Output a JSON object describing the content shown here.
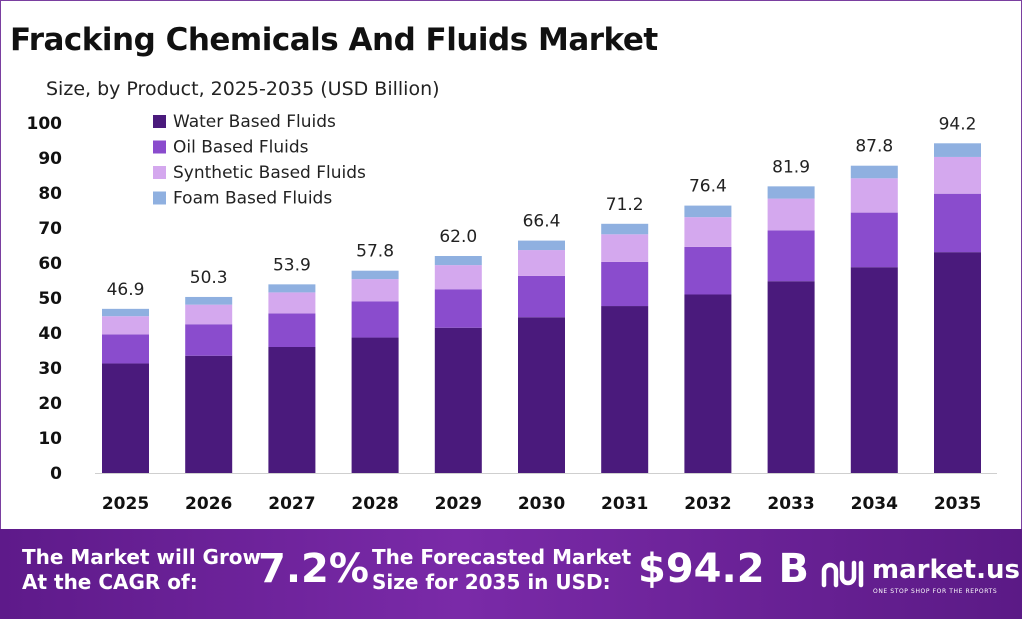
{
  "title": "Fracking Chemicals And Fluids Market",
  "subtitle": "Size, by Product, 2025-2035 (USD Billion)",
  "colors": {
    "water": "#4a1a7c",
    "oil": "#8a4ccd",
    "synthetic": "#d4a8ee",
    "foam": "#8fb0e0",
    "footer": "#6a2296"
  },
  "chart_data": {
    "type": "bar",
    "stacked": true,
    "categories": [
      "2025",
      "2026",
      "2027",
      "2028",
      "2029",
      "2030",
      "2031",
      "2032",
      "2033",
      "2034",
      "2035"
    ],
    "series": [
      {
        "name": "Water Based Fluids",
        "values": [
          31.3,
          33.5,
          36.0,
          38.7,
          41.5,
          44.5,
          47.7,
          51.0,
          54.8,
          58.8,
          63.1
        ]
      },
      {
        "name": "Oil Based Fluids",
        "values": [
          8.3,
          9.0,
          9.6,
          10.3,
          11.0,
          11.8,
          12.6,
          13.6,
          14.5,
          15.6,
          16.7
        ]
      },
      {
        "name": "Synthetic Based Fluids",
        "values": [
          5.2,
          5.6,
          6.0,
          6.4,
          6.9,
          7.4,
          7.9,
          8.5,
          9.1,
          9.8,
          10.5
        ]
      },
      {
        "name": "Foam Based Fluids",
        "values": [
          2.1,
          2.2,
          2.3,
          2.4,
          2.6,
          2.7,
          3.0,
          3.3,
          3.5,
          3.6,
          3.9
        ]
      }
    ],
    "totals": [
      "46.9",
      "50.3",
      "53.9",
      "57.8",
      "62.0",
      "66.4",
      "71.2",
      "76.4",
      "81.9",
      "87.8",
      "94.2"
    ],
    "yticks": [
      "0",
      "10",
      "20",
      "30",
      "40",
      "50",
      "60",
      "70",
      "80",
      "90",
      "100"
    ],
    "ylim": [
      0,
      100
    ],
    "grid": false,
    "legend_position": "top-left"
  },
  "footer": {
    "cagr_label_line1": "The Market will Grow",
    "cagr_label_line2": "At the CAGR of:",
    "cagr_value": "7.2%",
    "forecast_label_line1": "The Forecasted Market",
    "forecast_label_line2": "Size for 2035 in USD:",
    "forecast_value": "$94.2 B",
    "brand": "market.us",
    "brand_tagline": "ONE STOP SHOP FOR THE REPORTS"
  }
}
